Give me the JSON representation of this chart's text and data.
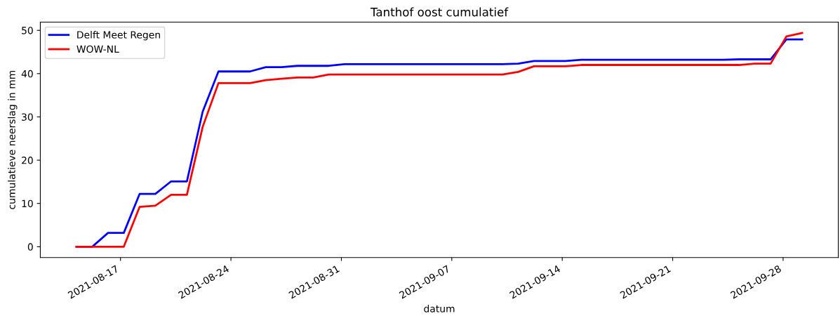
{
  "chart_data": {
    "type": "line",
    "title": "Tanthof oost cumulatief",
    "xlabel": "datum",
    "ylabel": "cumulatieve neerslag in mm",
    "x": [
      "2021-08-14T05:00",
      "2021-08-15T05:00",
      "2021-08-16T05:00",
      "2021-08-17T05:00",
      "2021-08-18T05:00",
      "2021-08-19T05:00",
      "2021-08-20T05:00",
      "2021-08-21T05:00",
      "2021-08-22T05:00",
      "2021-08-23T05:00",
      "2021-08-24T05:00",
      "2021-08-25T05:00",
      "2021-08-26T05:00",
      "2021-08-27T05:00",
      "2021-08-28T05:00",
      "2021-08-29T05:00",
      "2021-08-30T05:00",
      "2021-08-31T05:00",
      "2021-09-01T05:00",
      "2021-09-02T05:00",
      "2021-09-03T05:00",
      "2021-09-04T05:00",
      "2021-09-05T05:00",
      "2021-09-06T05:00",
      "2021-09-07T05:00",
      "2021-09-08T05:00",
      "2021-09-09T05:00",
      "2021-09-10T05:00",
      "2021-09-11T05:00",
      "2021-09-12T05:00",
      "2021-09-13T05:00",
      "2021-09-14T05:00",
      "2021-09-15T05:00",
      "2021-09-16T05:00",
      "2021-09-17T05:00",
      "2021-09-18T05:00",
      "2021-09-19T05:00",
      "2021-09-20T05:00",
      "2021-09-21T05:00",
      "2021-09-22T05:00",
      "2021-09-23T05:00",
      "2021-09-24T05:00",
      "2021-09-25T05:00",
      "2021-09-26T05:00",
      "2021-09-27T05:00",
      "2021-09-28T05:00",
      "2021-09-29T05:00"
    ],
    "series": [
      {
        "name": "Delft Meet Regen",
        "color": "#0000ff",
        "values": [
          0,
          0,
          3.2,
          3.2,
          12.2,
          12.2,
          15.1,
          15.1,
          31.2,
          40.5,
          40.5,
          40.5,
          41.5,
          41.5,
          41.8,
          41.8,
          41.8,
          42.2,
          42.2,
          42.2,
          42.2,
          42.2,
          42.2,
          42.2,
          42.2,
          42.2,
          42.2,
          42.2,
          42.3,
          42.9,
          42.9,
          42.9,
          43.2,
          43.2,
          43.2,
          43.2,
          43.2,
          43.2,
          43.2,
          43.2,
          43.2,
          43.2,
          43.3,
          43.3,
          43.3,
          47.9,
          47.9
        ]
      },
      {
        "name": "WOW-NL",
        "color": "#ff0000",
        "values": [
          0,
          0,
          0,
          0,
          9.2,
          9.5,
          12.0,
          12.0,
          27.7,
          37.8,
          37.8,
          37.8,
          38.5,
          38.8,
          39.1,
          39.1,
          39.8,
          39.8,
          39.8,
          39.8,
          39.8,
          39.8,
          39.8,
          39.8,
          39.8,
          39.8,
          39.8,
          39.8,
          40.4,
          41.7,
          41.7,
          41.7,
          42.0,
          42.0,
          42.0,
          42.0,
          42.0,
          42.0,
          42.0,
          42.0,
          42.0,
          42.0,
          42.0,
          42.3,
          42.3,
          48.6,
          49.4
        ]
      }
    ],
    "xlim": [
      "2021-08-11T22:00",
      "2021-10-01T12:00"
    ],
    "xticks": [
      {
        "value": "2021-08-17",
        "label": "2021-08-17"
      },
      {
        "value": "2021-08-24",
        "label": "2021-08-24"
      },
      {
        "value": "2021-08-31",
        "label": "2021-08-31"
      },
      {
        "value": "2021-09-07",
        "label": "2021-09-07"
      },
      {
        "value": "2021-09-14",
        "label": "2021-09-14"
      },
      {
        "value": "2021-09-21",
        "label": "2021-09-21"
      },
      {
        "value": "2021-09-28",
        "label": "2021-09-28"
      }
    ],
    "ylim": [
      -2.5,
      51.9
    ],
    "yticks": [
      0,
      10,
      20,
      30,
      40,
      50
    ],
    "grid": false,
    "legend": "top left",
    "marker": "none",
    "line_style": "solid"
  }
}
